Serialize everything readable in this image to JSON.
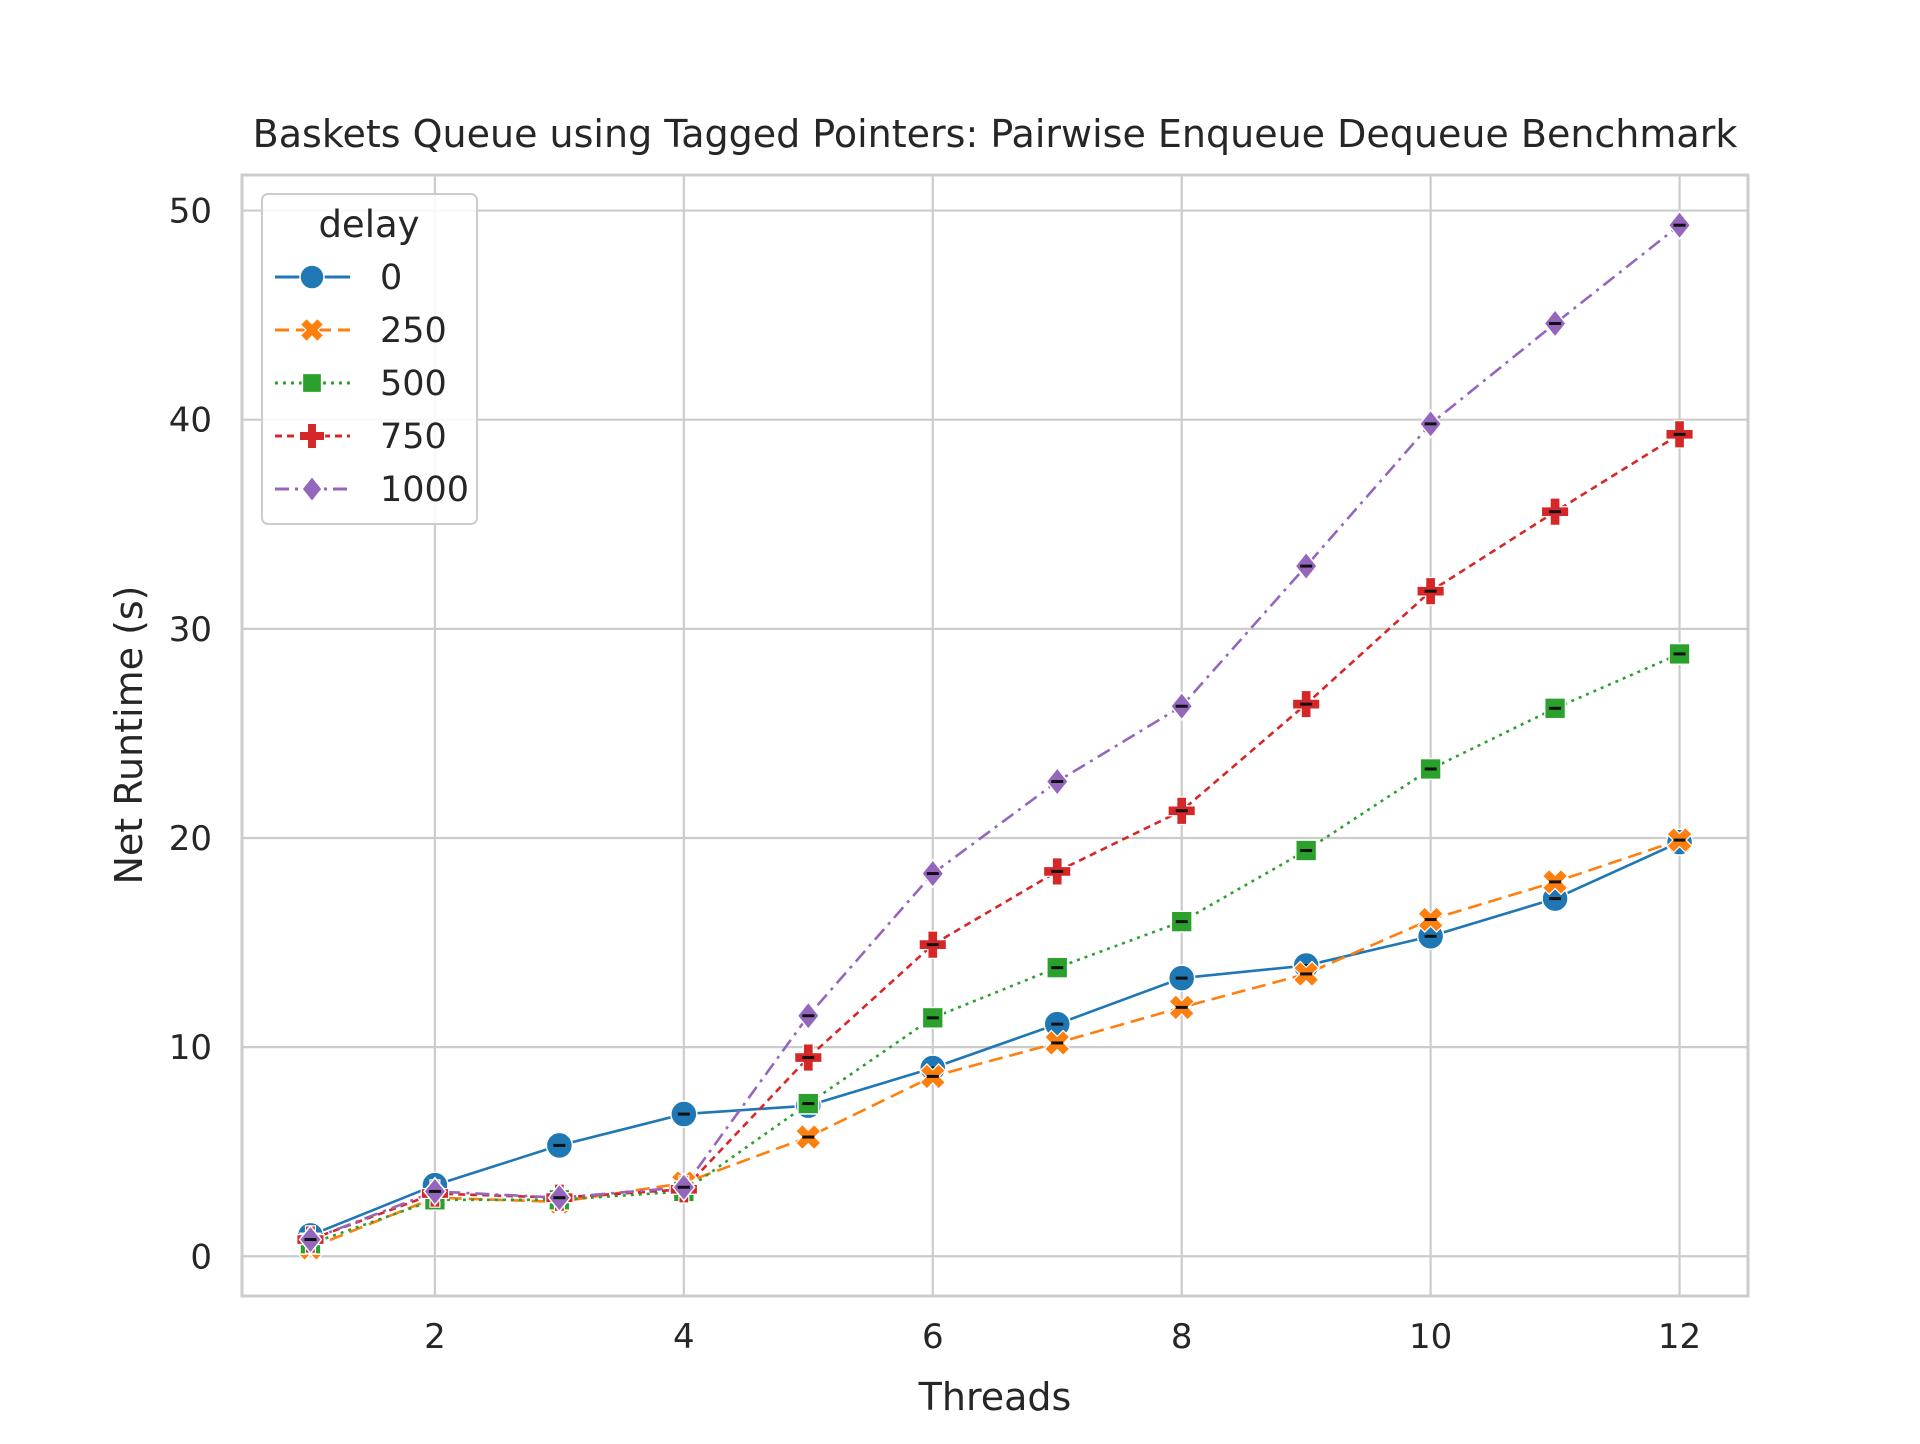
{
  "chart_data": {
    "type": "line",
    "title": "Baskets Queue using Tagged Pointers: Pairwise Enqueue Dequeue Benchmark",
    "xlabel": "Threads",
    "ylabel": "Net Runtime (s)",
    "x": [
      1,
      2,
      3,
      4,
      5,
      6,
      7,
      8,
      9,
      10,
      11,
      12
    ],
    "xlim": [
      0.45,
      12.55
    ],
    "ylim": [
      -1.9,
      51.7
    ],
    "xticks": [
      2,
      4,
      6,
      8,
      10,
      12
    ],
    "yticks": [
      0,
      10,
      20,
      30,
      40,
      50
    ],
    "grid": true,
    "legend": {
      "title": "delay",
      "placement": "top-left"
    },
    "series": [
      {
        "name": "0",
        "color": "#1f77b4",
        "dash": "solid",
        "marker": "circle",
        "values": [
          1.0,
          3.4,
          5.3,
          6.8,
          7.2,
          9.0,
          11.1,
          13.3,
          13.9,
          15.3,
          17.1,
          19.8
        ]
      },
      {
        "name": "250",
        "color": "#ff7f0e",
        "dash": "dashed",
        "marker": "x",
        "values": [
          0.4,
          2.8,
          2.6,
          3.5,
          5.7,
          8.6,
          10.2,
          11.9,
          13.5,
          16.1,
          17.9,
          19.9
        ]
      },
      {
        "name": "500",
        "color": "#2ca02c",
        "dash": "dotted",
        "marker": "square",
        "values": [
          0.6,
          2.7,
          2.7,
          3.1,
          7.3,
          11.4,
          13.8,
          16.0,
          19.4,
          23.3,
          26.2,
          28.8
        ]
      },
      {
        "name": "750",
        "color": "#d62728",
        "dash": "densedash",
        "marker": "plus",
        "values": [
          0.8,
          3.0,
          2.8,
          3.2,
          9.5,
          14.9,
          18.4,
          21.3,
          26.4,
          31.8,
          35.6,
          39.3
        ]
      },
      {
        "name": "1000",
        "color": "#9467bd",
        "dash": "dashdot",
        "marker": "diamond",
        "values": [
          0.8,
          3.1,
          2.8,
          3.3,
          11.5,
          18.3,
          22.7,
          26.3,
          33.0,
          39.8,
          44.6,
          49.3
        ]
      }
    ]
  }
}
